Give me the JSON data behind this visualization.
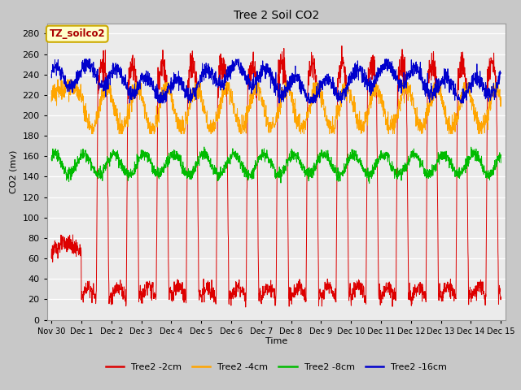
{
  "title": "Tree 2 Soil CO2",
  "ylabel": "CO2 (mv)",
  "xlabel": "Time",
  "annotation": "TZ_soilco2",
  "annotation_color": "#AA0000",
  "annotation_bg": "#FFFFCC",
  "annotation_border": "#CCAA00",
  "ylim": [
    0,
    290
  ],
  "yticks": [
    0,
    20,
    40,
    60,
    80,
    100,
    120,
    140,
    160,
    180,
    200,
    220,
    240,
    260,
    280
  ],
  "xtick_labels": [
    "Nov 30",
    "Dec 1",
    "Dec 2",
    "Dec 3",
    "Dec 4",
    "Dec 5",
    "Dec 6",
    "Dec 7",
    "Dec 8",
    "Dec 9",
    "Dec 10",
    "Dec 11",
    "Dec 12",
    "Dec 13",
    "Dec 14",
    "Dec 15"
  ],
  "bg_color": "#C8C8C8",
  "plot_bg": "#EBEBEB",
  "grid_color": "white",
  "line_colors": {
    "2cm": "#DD0000",
    "4cm": "#FFA500",
    "8cm": "#00BB00",
    "16cm": "#0000CC"
  },
  "legend_labels": [
    "Tree2 -2cm",
    "Tree2 -4cm",
    "Tree2 -8cm",
    "Tree2 -16cm"
  ],
  "legend_colors": [
    "#DD0000",
    "#FFA500",
    "#00BB00",
    "#0000CC"
  ],
  "figsize": [
    6.4,
    4.8
  ],
  "dpi": 100
}
